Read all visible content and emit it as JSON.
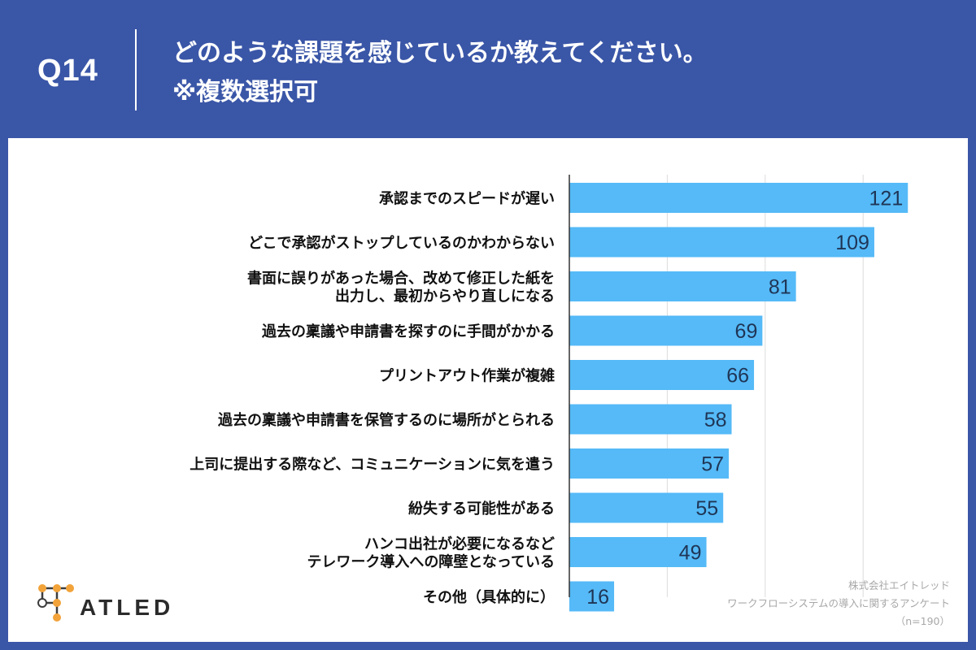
{
  "header": {
    "qnum": "Q14",
    "title_line1": "どのような課題を感じているか教えてください。",
    "title_line2": "※複数選択可"
  },
  "colors": {
    "background": "#3a56a7",
    "bar": "#55baf7",
    "panel": "#ffffff"
  },
  "chart_data": {
    "type": "bar",
    "orientation": "horizontal",
    "categories": [
      [
        "承認までのスピードが遅い"
      ],
      [
        "どこで承認がストップしているのかわからない"
      ],
      [
        "書面に誤りがあった場合、改めて修正した紙を",
        "出力し、最初からやり直しになる"
      ],
      [
        "過去の稟議や申請書を探すのに手間がかかる"
      ],
      [
        "プリントアウト作業が複雑"
      ],
      [
        "過去の稟議や申請書を保管するのに場所がとられる"
      ],
      [
        "上司に提出する際など、コミュニケーションに気を遣う"
      ],
      [
        "紛失する可能性がある"
      ],
      [
        "ハンコ出社が必要になるなど",
        "テレワーク導入への障壁となっている"
      ],
      [
        "その他（具体的に）"
      ]
    ],
    "values": [
      121,
      109,
      81,
      69,
      66,
      58,
      57,
      55,
      49,
      16
    ],
    "xlim": [
      0,
      125
    ],
    "gridlines": [
      0,
      35,
      70,
      105
    ],
    "grid": true,
    "legend": "none"
  },
  "logo": {
    "text": "ATLED"
  },
  "source": {
    "line1": "株式会社エイトレッド",
    "line2": "ワークフローシステムの導入に関するアンケート",
    "line3": "（n=190）"
  }
}
